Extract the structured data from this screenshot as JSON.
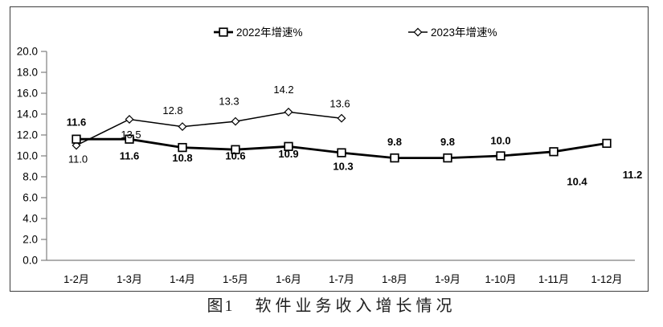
{
  "caption": {
    "fig_label": "图1",
    "title": "软件业务收入增长情况"
  },
  "chart_data": {
    "type": "line",
    "title": "图1 软件业务收入增长情况",
    "categories": [
      "1-2月",
      "1-3月",
      "1-4月",
      "1-5月",
      "1-6月",
      "1-7月",
      "1-8月",
      "1-9月",
      "1-10月",
      "1-11月",
      "1-12月"
    ],
    "xlabel": "",
    "ylabel": "",
    "ylim": [
      0,
      20
    ],
    "y_tick_step": 2,
    "y_tick_labels": [
      "0.0",
      "2.0",
      "4.0",
      "6.0",
      "8.0",
      "10.0",
      "12.0",
      "14.0",
      "16.0",
      "18.0",
      "20.0"
    ],
    "grid": false,
    "legend_position": "top-center",
    "colors": {
      "line": "#000000",
      "axis": "#7f7f7f",
      "frame": "#3d3d3d",
      "marker_fill": "#ffffff"
    },
    "series": [
      {
        "name": "2022年增速%",
        "marker": "square",
        "line_width": 2.8,
        "bold_labels": true,
        "values": [
          11.6,
          11.6,
          10.8,
          10.6,
          10.9,
          10.3,
          9.8,
          9.8,
          10.0,
          10.4,
          11.2
        ],
        "labels": [
          "11.6",
          "11.6",
          "10.8",
          "10.6",
          "10.9",
          "10.3",
          "9.8",
          "9.8",
          "10.0",
          "10.4",
          "11.2"
        ],
        "label_offsets": [
          [
            0,
            -21
          ],
          [
            0,
            21
          ],
          [
            0,
            13
          ],
          [
            0,
            8
          ],
          [
            0,
            9
          ],
          [
            2,
            17
          ],
          [
            0,
            -20
          ],
          [
            0,
            -20
          ],
          [
            0,
            -19
          ],
          [
            29,
            37
          ],
          [
            32,
            39
          ]
        ]
      },
      {
        "name": "2023年增速%",
        "marker": "diamond",
        "line_width": 1.5,
        "bold_labels": false,
        "values": [
          11.0,
          13.5,
          12.8,
          13.3,
          14.2,
          13.6
        ],
        "labels": [
          "11.0",
          "13.5",
          "12.8",
          "13.3",
          "14.2",
          "13.6"
        ],
        "label_offsets": [
          [
            2,
            17
          ],
          [
            2,
            19
          ],
          [
            -12,
            -20
          ],
          [
            -8,
            -25
          ],
          [
            -6,
            -28
          ],
          [
            -2,
            -18
          ]
        ]
      }
    ]
  }
}
